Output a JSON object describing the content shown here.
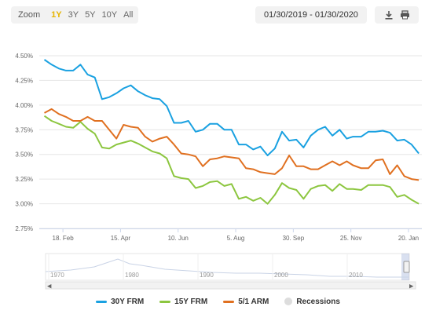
{
  "toolbar": {
    "zoom_label": "Zoom",
    "zoom_options": [
      "1Y",
      "3Y",
      "5Y",
      "10Y",
      "All"
    ],
    "active_zoom": "1Y",
    "date_range": "01/30/2019 - 01/30/2020",
    "download_icon": "download-icon",
    "print_icon": "print-icon"
  },
  "colors": {
    "frm30": "#1aa1e1",
    "frm15": "#8cc63f",
    "arm51": "#e07020",
    "recessions": "#dddddd",
    "active_zoom": "#e6b400"
  },
  "chart_data": {
    "type": "line",
    "title": "",
    "xlabel": "",
    "ylabel": "",
    "ylim": [
      2.75,
      4.5
    ],
    "y_ticks": [
      "2.75%",
      "3.00%",
      "3.25%",
      "3.50%",
      "3.75%",
      "4.00%",
      "4.25%",
      "4.50%"
    ],
    "x_ticks": [
      "18. Feb",
      "15. Apr",
      "10. Jun",
      "5. Aug",
      "30. Sep",
      "25. Nov",
      "20. Jan"
    ],
    "x_tick_dates": [
      "2019-02-18",
      "2019-04-15",
      "2019-06-10",
      "2019-08-05",
      "2019-09-30",
      "2019-11-25",
      "2020-01-20"
    ],
    "grid": true,
    "x": [
      "2019-01-31",
      "2019-02-07",
      "2019-02-14",
      "2019-02-21",
      "2019-02-28",
      "2019-03-07",
      "2019-03-14",
      "2019-03-21",
      "2019-03-28",
      "2019-04-04",
      "2019-04-11",
      "2019-04-18",
      "2019-04-25",
      "2019-05-02",
      "2019-05-09",
      "2019-05-16",
      "2019-05-23",
      "2019-05-30",
      "2019-06-06",
      "2019-06-13",
      "2019-06-20",
      "2019-06-27",
      "2019-07-04",
      "2019-07-11",
      "2019-07-18",
      "2019-07-25",
      "2019-08-01",
      "2019-08-08",
      "2019-08-15",
      "2019-08-22",
      "2019-08-29",
      "2019-09-05",
      "2019-09-12",
      "2019-09-19",
      "2019-09-26",
      "2019-10-03",
      "2019-10-10",
      "2019-10-17",
      "2019-10-24",
      "2019-10-31",
      "2019-11-07",
      "2019-11-14",
      "2019-11-21",
      "2019-11-27",
      "2019-12-05",
      "2019-12-12",
      "2019-12-19",
      "2019-12-26",
      "2020-01-02",
      "2020-01-09",
      "2020-01-16",
      "2020-01-23",
      "2020-01-30"
    ],
    "series": [
      {
        "name": "30Y FRM",
        "values": [
          4.46,
          4.41,
          4.37,
          4.35,
          4.35,
          4.41,
          4.31,
          4.28,
          4.06,
          4.08,
          4.12,
          4.17,
          4.2,
          4.14,
          4.1,
          4.07,
          4.06,
          3.99,
          3.82,
          3.82,
          3.84,
          3.73,
          3.75,
          3.81,
          3.81,
          3.75,
          3.75,
          3.6,
          3.6,
          3.55,
          3.58,
          3.49,
          3.56,
          3.73,
          3.64,
          3.65,
          3.57,
          3.69,
          3.75,
          3.78,
          3.69,
          3.75,
          3.66,
          3.68,
          3.68,
          3.73,
          3.73,
          3.74,
          3.72,
          3.64,
          3.65,
          3.6,
          3.51
        ]
      },
      {
        "name": "15Y FRM",
        "values": [
          3.89,
          3.84,
          3.81,
          3.78,
          3.77,
          3.83,
          3.76,
          3.71,
          3.57,
          3.56,
          3.6,
          3.62,
          3.64,
          3.61,
          3.57,
          3.53,
          3.51,
          3.46,
          3.28,
          3.26,
          3.25,
          3.16,
          3.18,
          3.22,
          3.23,
          3.18,
          3.2,
          3.05,
          3.07,
          3.03,
          3.06,
          3.0,
          3.09,
          3.21,
          3.16,
          3.14,
          3.05,
          3.15,
          3.18,
          3.19,
          3.13,
          3.2,
          3.15,
          3.15,
          3.14,
          3.19,
          3.19,
          3.19,
          3.17,
          3.07,
          3.09,
          3.04,
          3.0
        ]
      },
      {
        "name": "5/1 ARM",
        "values": [
          3.92,
          3.96,
          3.91,
          3.88,
          3.84,
          3.84,
          3.88,
          3.84,
          3.84,
          3.75,
          3.66,
          3.8,
          3.78,
          3.77,
          3.68,
          3.63,
          3.66,
          3.68,
          3.6,
          3.51,
          3.5,
          3.48,
          3.38,
          3.45,
          3.46,
          3.48,
          3.47,
          3.46,
          3.36,
          3.35,
          3.32,
          3.31,
          3.3,
          3.36,
          3.49,
          3.38,
          3.38,
          3.35,
          3.35,
          3.39,
          3.43,
          3.39,
          3.43,
          3.39,
          3.36,
          3.36,
          3.44,
          3.45,
          3.3,
          3.39,
          3.28,
          3.25,
          3.24
        ]
      }
    ],
    "navigator": {
      "x_ticks": [
        "1970",
        "1980",
        "1990",
        "2000",
        "2010"
      ]
    },
    "legend": {
      "placement": "bottom",
      "items": [
        "30Y FRM",
        "15Y FRM",
        "5/1 ARM",
        "Recessions"
      ]
    }
  }
}
